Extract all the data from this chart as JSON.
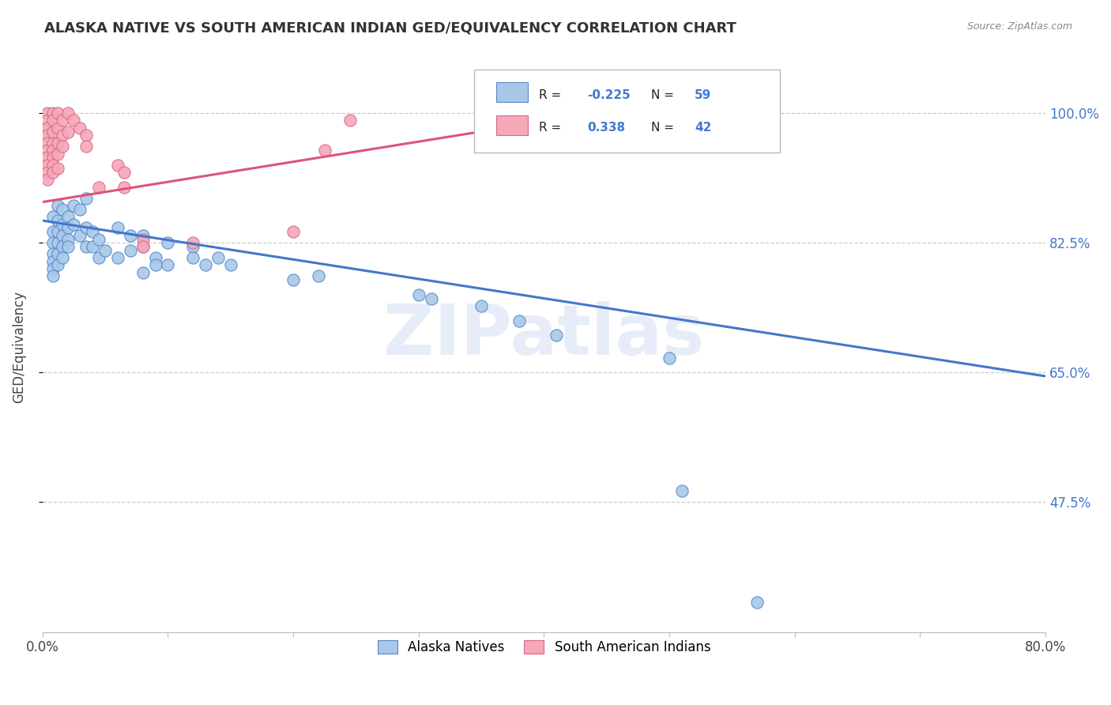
{
  "title": "ALASKA NATIVE VS SOUTH AMERICAN INDIAN GED/EQUIVALENCY CORRELATION CHART",
  "source": "Source: ZipAtlas.com",
  "ylabel": "GED/Equivalency",
  "ytick_labels": [
    "100.0%",
    "82.5%",
    "65.0%",
    "47.5%"
  ],
  "ytick_values": [
    1.0,
    0.825,
    0.65,
    0.475
  ],
  "xmin": 0.0,
  "xmax": 0.8,
  "ymin": 0.3,
  "ymax": 1.07,
  "watermark_text": "ZIPatlas",
  "legend_blue_label": "Alaska Natives",
  "legend_pink_label": "South American Indians",
  "blue_R": "-0.225",
  "blue_N": "59",
  "pink_R": "0.338",
  "pink_N": "42",
  "blue_fill": "#a8c8e8",
  "pink_fill": "#f4a8b8",
  "blue_edge": "#5588cc",
  "pink_edge": "#dd6688",
  "blue_line": "#4477cc",
  "pink_line": "#dd5577",
  "blue_points": [
    [
      0.008,
      0.86
    ],
    [
      0.008,
      0.84
    ],
    [
      0.008,
      0.825
    ],
    [
      0.008,
      0.81
    ],
    [
      0.008,
      0.8
    ],
    [
      0.008,
      0.79
    ],
    [
      0.008,
      0.78
    ],
    [
      0.012,
      0.875
    ],
    [
      0.012,
      0.855
    ],
    [
      0.012,
      0.84
    ],
    [
      0.012,
      0.825
    ],
    [
      0.012,
      0.81
    ],
    [
      0.012,
      0.795
    ],
    [
      0.016,
      0.87
    ],
    [
      0.016,
      0.85
    ],
    [
      0.016,
      0.835
    ],
    [
      0.016,
      0.82
    ],
    [
      0.016,
      0.805
    ],
    [
      0.02,
      0.86
    ],
    [
      0.02,
      0.845
    ],
    [
      0.02,
      0.83
    ],
    [
      0.02,
      0.82
    ],
    [
      0.025,
      0.875
    ],
    [
      0.025,
      0.85
    ],
    [
      0.03,
      0.87
    ],
    [
      0.03,
      0.835
    ],
    [
      0.035,
      0.885
    ],
    [
      0.035,
      0.845
    ],
    [
      0.035,
      0.82
    ],
    [
      0.04,
      0.84
    ],
    [
      0.04,
      0.82
    ],
    [
      0.045,
      0.83
    ],
    [
      0.045,
      0.805
    ],
    [
      0.05,
      0.815
    ],
    [
      0.06,
      0.845
    ],
    [
      0.06,
      0.805
    ],
    [
      0.07,
      0.835
    ],
    [
      0.07,
      0.815
    ],
    [
      0.08,
      0.835
    ],
    [
      0.08,
      0.82
    ],
    [
      0.08,
      0.785
    ],
    [
      0.09,
      0.805
    ],
    [
      0.09,
      0.795
    ],
    [
      0.1,
      0.825
    ],
    [
      0.1,
      0.795
    ],
    [
      0.12,
      0.82
    ],
    [
      0.12,
      0.805
    ],
    [
      0.13,
      0.795
    ],
    [
      0.14,
      0.805
    ],
    [
      0.15,
      0.795
    ],
    [
      0.2,
      0.775
    ],
    [
      0.22,
      0.78
    ],
    [
      0.3,
      0.755
    ],
    [
      0.31,
      0.75
    ],
    [
      0.35,
      0.74
    ],
    [
      0.38,
      0.72
    ],
    [
      0.41,
      0.7
    ],
    [
      0.5,
      0.67
    ],
    [
      0.51,
      0.49
    ],
    [
      0.57,
      0.34
    ]
  ],
  "pink_points": [
    [
      0.004,
      1.0
    ],
    [
      0.004,
      0.99
    ],
    [
      0.004,
      0.98
    ],
    [
      0.004,
      0.97
    ],
    [
      0.004,
      0.96
    ],
    [
      0.004,
      0.95
    ],
    [
      0.004,
      0.94
    ],
    [
      0.004,
      0.93
    ],
    [
      0.004,
      0.92
    ],
    [
      0.004,
      0.91
    ],
    [
      0.008,
      1.0
    ],
    [
      0.008,
      0.99
    ],
    [
      0.008,
      0.975
    ],
    [
      0.008,
      0.96
    ],
    [
      0.008,
      0.95
    ],
    [
      0.008,
      0.94
    ],
    [
      0.008,
      0.93
    ],
    [
      0.008,
      0.92
    ],
    [
      0.012,
      1.0
    ],
    [
      0.012,
      0.98
    ],
    [
      0.012,
      0.96
    ],
    [
      0.012,
      0.945
    ],
    [
      0.012,
      0.925
    ],
    [
      0.016,
      0.99
    ],
    [
      0.016,
      0.97
    ],
    [
      0.016,
      0.955
    ],
    [
      0.02,
      1.0
    ],
    [
      0.02,
      0.975
    ],
    [
      0.025,
      0.99
    ],
    [
      0.03,
      0.98
    ],
    [
      0.035,
      0.97
    ],
    [
      0.035,
      0.955
    ],
    [
      0.045,
      0.9
    ],
    [
      0.06,
      0.93
    ],
    [
      0.065,
      0.92
    ],
    [
      0.065,
      0.9
    ],
    [
      0.08,
      0.83
    ],
    [
      0.08,
      0.82
    ],
    [
      0.12,
      0.825
    ],
    [
      0.2,
      0.84
    ],
    [
      0.225,
      0.95
    ],
    [
      0.245,
      0.99
    ]
  ],
  "blue_trendline_x": [
    0.0,
    0.8
  ],
  "blue_trendline_y": [
    0.855,
    0.645
  ],
  "pink_trendline_x": [
    0.0,
    0.46
  ],
  "pink_trendline_y": [
    0.88,
    1.005
  ],
  "xtick_positions": [
    0.0,
    0.1,
    0.2,
    0.3,
    0.4,
    0.5,
    0.6,
    0.7,
    0.8
  ],
  "xtick_labels": [
    "0.0%",
    "",
    "",
    "",
    "",
    "",
    "",
    "",
    "80.0%"
  ]
}
